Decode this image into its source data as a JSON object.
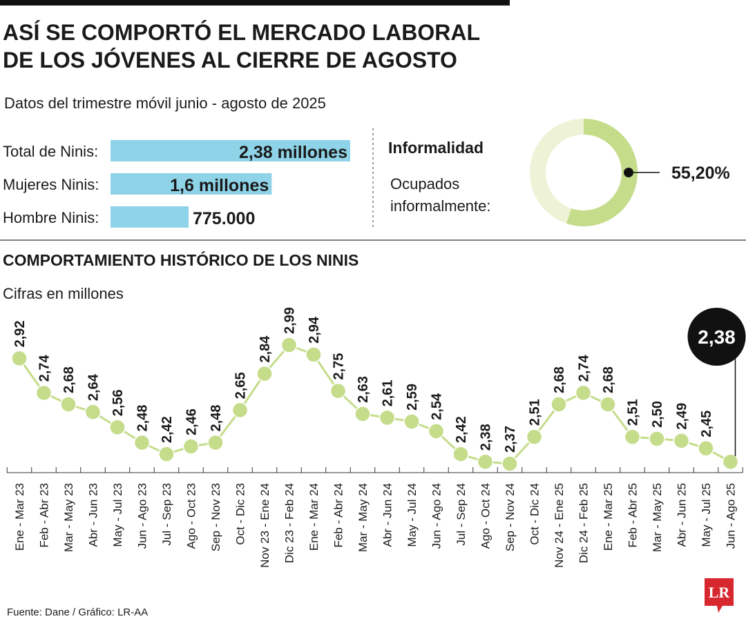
{
  "title_lines": [
    "ASÍ SE COMPORTÓ EL MERCADO LABORAL",
    "DE LOS JÓVENES AL CIERRE DE AGOSTO"
  ],
  "subtitle": "Datos del trimestre móvil junio - agosto de 2025",
  "source": "Fuente: Dane / Gráfico: LR-AA",
  "logo": "LR",
  "chart_data": [
    {
      "type": "hbar",
      "categories": [
        "Total de Ninis:",
        "Mujeres Ninis:",
        "Hombre Ninis:"
      ],
      "values": [
        2380000,
        1600000,
        775000
      ],
      "value_labels": [
        "2,38 millones",
        "1,6 millones",
        "775.000"
      ],
      "color": "#8fd3e8"
    },
    {
      "type": "donut",
      "title": "Informalidad",
      "label_lines": [
        "Ocupados",
        "informalmente:"
      ],
      "values": [
        55.2
      ],
      "value_labels": [
        "55,20%"
      ],
      "colors": [
        "#c5dc8a",
        "#eef2d6"
      ]
    },
    {
      "type": "line",
      "title": "COMPORTAMIENTO HISTÓRICO DE LOS NINIS",
      "subtitle": "Cifras en millones",
      "categories": [
        "Ene - Mar 23",
        "Feb - Abr 23",
        "Mar - May 23",
        "Abr - Jun 23",
        "May - Jul 23",
        "Jun - Ago 23",
        "Jul - Sep 23",
        "Ago - Oct 23",
        "Sep - Nov 23",
        "Oct - Dic 23",
        "Nov 23 - Ene 24",
        "Dic 23 - Feb 24",
        "Ene - Mar 24",
        "Feb - Abr 24",
        "Mar - May 24",
        "Abr - Jun 24",
        "May - Jul 24",
        "Jun - Ago 24",
        "Jul - Sep 24",
        "Ago - Oct 24",
        "Sep - Nov 24",
        "Oct - Dic 24",
        "Nov 24 - Ene 25",
        "Dic 24 - Feb 25",
        "Ene - Mar 25",
        "Feb - Abr 25",
        "Mar - May 25",
        "Abr - Jun 25",
        "May - Jul 25",
        "Jun - Ago 25"
      ],
      "values": [
        2.92,
        2.74,
        2.68,
        2.64,
        2.56,
        2.48,
        2.42,
        2.46,
        2.48,
        2.65,
        2.84,
        2.99,
        2.94,
        2.75,
        2.63,
        2.61,
        2.59,
        2.54,
        2.42,
        2.38,
        2.37,
        2.51,
        2.68,
        2.74,
        2.68,
        2.51,
        2.5,
        2.49,
        2.45,
        2.38
      ],
      "value_labels": [
        "2,92",
        "2,74",
        "2,68",
        "2,64",
        "2,56",
        "2,48",
        "2,42",
        "2,46",
        "2,48",
        "2,65",
        "2,84",
        "2,99",
        "2,94",
        "2,75",
        "2,63",
        "2,61",
        "2,59",
        "2,54",
        "2,42",
        "2,38",
        "2,37",
        "2,51",
        "2,68",
        "2,74",
        "2,68",
        "2,51",
        "2,50",
        "2,49",
        "2,45",
        "2,38"
      ],
      "color": "#c5dc8a"
    }
  ]
}
